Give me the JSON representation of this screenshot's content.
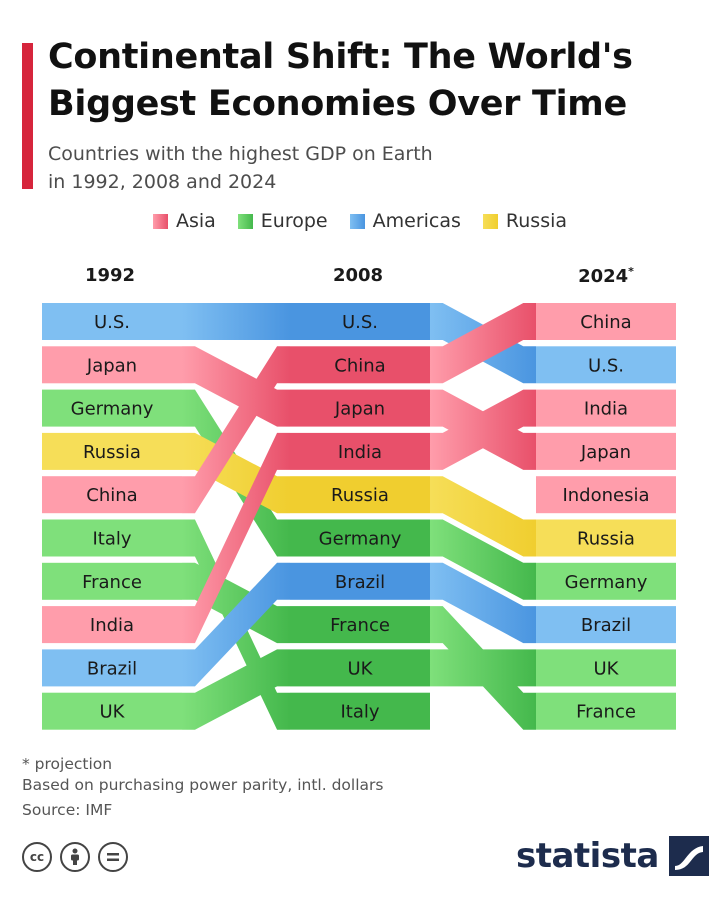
{
  "header": {
    "title": "Continental Shift: The World's Biggest Economies Over Time",
    "subtitle_line1": "Countries with the highest GDP on Earth",
    "subtitle_line2": "in 1992, 2008 and 2024"
  },
  "legend": [
    {
      "label": "Asia",
      "color": "#f0637b"
    },
    {
      "label": "Europe",
      "color": "#5cd160"
    },
    {
      "label": "Americas",
      "color": "#5aa3e8"
    },
    {
      "label": "Russia",
      "color": "#f2d648"
    }
  ],
  "chart_data": {
    "type": "bump",
    "title": "Continental Shift: The World's Biggest Economies Over Time",
    "years": [
      "1992",
      "2008",
      "2024"
    ],
    "year_suffix": [
      "",
      "",
      "*"
    ],
    "metric": "GDP rank (purchasing power parity, intl. dollars)",
    "rankings": {
      "1992": [
        "U.S.",
        "Japan",
        "Germany",
        "Russia",
        "China",
        "Italy",
        "France",
        "India",
        "Brazil",
        "UK"
      ],
      "2008": [
        "U.S.",
        "China",
        "Japan",
        "India",
        "Russia",
        "Germany",
        "Brazil",
        "France",
        "UK",
        "Italy"
      ],
      "2024": [
        "China",
        "U.S.",
        "India",
        "Japan",
        "Indonesia",
        "Russia",
        "Germany",
        "Brazil",
        "UK",
        "France"
      ]
    },
    "series": [
      {
        "name": "U.S.",
        "region": "Americas",
        "ranks": [
          1,
          1,
          2
        ]
      },
      {
        "name": "Japan",
        "region": "Asia",
        "ranks": [
          2,
          3,
          4
        ]
      },
      {
        "name": "Germany",
        "region": "Europe",
        "ranks": [
          3,
          6,
          7
        ]
      },
      {
        "name": "Russia",
        "region": "Russia",
        "ranks": [
          4,
          5,
          6
        ]
      },
      {
        "name": "China",
        "region": "Asia",
        "ranks": [
          5,
          2,
          1
        ]
      },
      {
        "name": "Italy",
        "region": "Europe",
        "ranks": [
          6,
          10,
          null
        ]
      },
      {
        "name": "France",
        "region": "Europe",
        "ranks": [
          7,
          8,
          10
        ]
      },
      {
        "name": "India",
        "region": "Asia",
        "ranks": [
          8,
          4,
          3
        ]
      },
      {
        "name": "Brazil",
        "region": "Americas",
        "ranks": [
          9,
          7,
          8
        ]
      },
      {
        "name": "UK",
        "region": "Europe",
        "ranks": [
          10,
          9,
          9
        ]
      },
      {
        "name": "Indonesia",
        "region": "Asia",
        "ranks": [
          null,
          null,
          5
        ]
      }
    ],
    "region_colors": {
      "Asia": {
        "light": "#ff9dab",
        "dark": "#e8506a"
      },
      "Europe": {
        "light": "#7fe07b",
        "dark": "#44b84c"
      },
      "Americas": {
        "light": "#7fbff2",
        "dark": "#4a95e0"
      },
      "Russia": {
        "light": "#f6de58",
        "dark": "#f0ce2f"
      }
    }
  },
  "footnotes": {
    "projection": "* projection",
    "basis": "Based on purchasing power parity, intl. dollars",
    "source": "Source: IMF"
  },
  "brand": {
    "name": "statista"
  },
  "license_icons": [
    "cc-icon",
    "attribution-icon",
    "no-derivatives-icon"
  ]
}
